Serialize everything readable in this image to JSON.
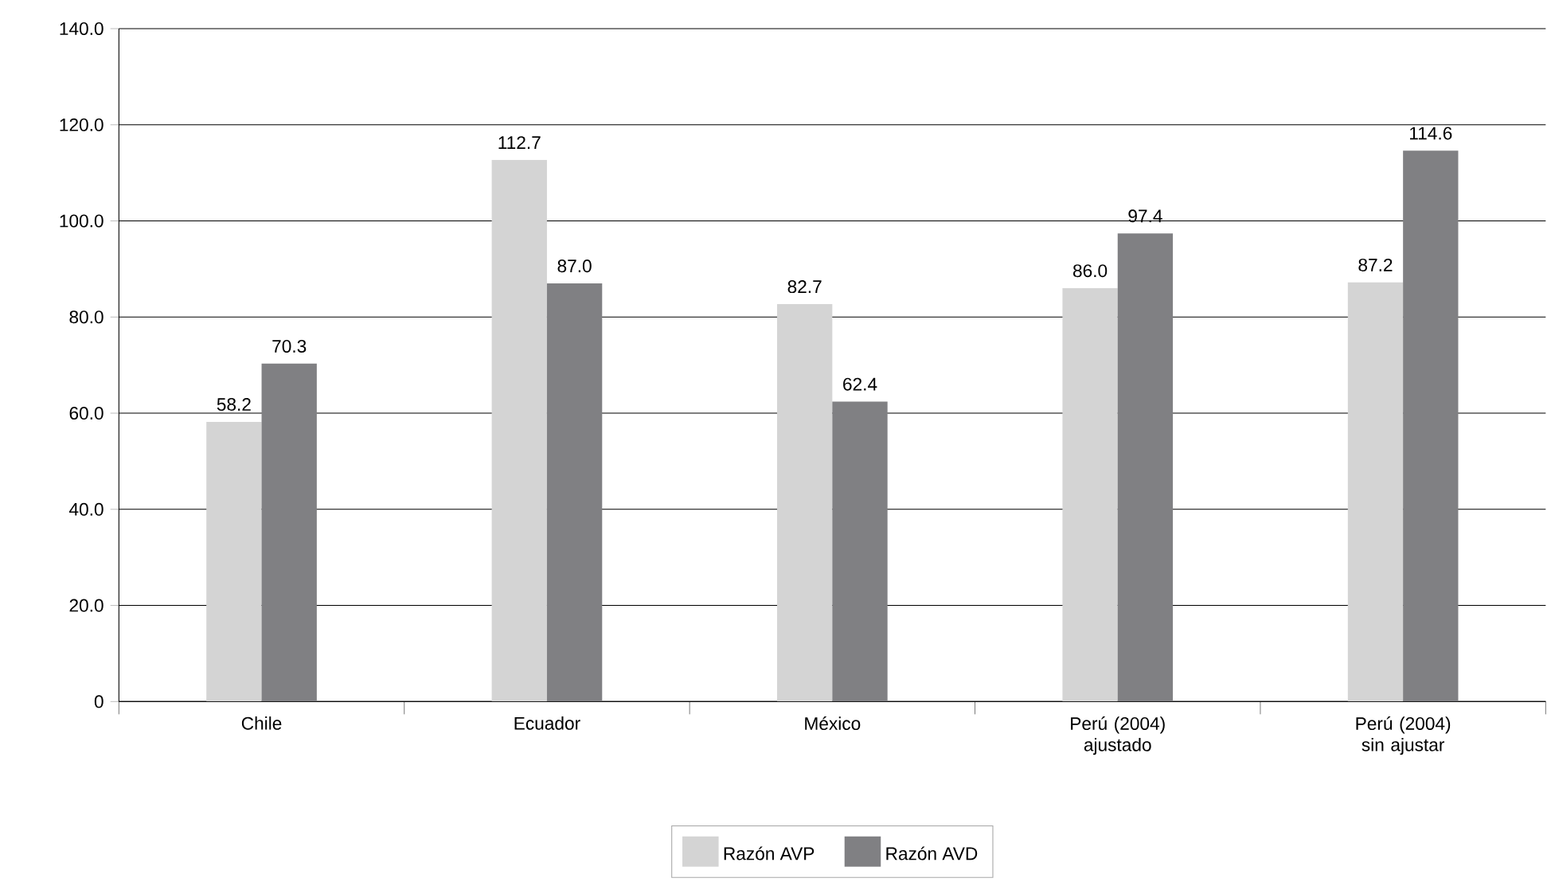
{
  "chart_data": {
    "type": "bar",
    "categories": [
      "Chile",
      "Ecuador",
      "México",
      "Perú (2004) ajustado",
      "Perú (2004) sin ajustar"
    ],
    "series": [
      {
        "name": "Razón AVP",
        "color": "#d4d4d4",
        "values": [
          58.2,
          112.7,
          82.7,
          86.0,
          87.2
        ],
        "value_labels": [
          "58.2",
          "112.7",
          "82.7",
          "86.0",
          "87.2"
        ]
      },
      {
        "name": "Razón AVD",
        "color": "#808083",
        "values": [
          70.3,
          87.0,
          62.4,
          97.4,
          114.6
        ],
        "value_labels": [
          "70.3",
          "87.0",
          "62.4",
          "97.4",
          "114.6"
        ]
      }
    ],
    "ylim": [
      0,
      140
    ],
    "yticks": [
      0,
      {
        "value": 20,
        "label": "20.0"
      },
      {
        "value": 40,
        "label": "40.0"
      },
      {
        "value": 60,
        "label": "60.0"
      },
      {
        "value": 80,
        "label": "80.0"
      },
      {
        "value": 100,
        "label": "100.0"
      },
      {
        "value": 120,
        "label": "120.0"
      },
      {
        "value": 140,
        "label": "140.0"
      }
    ],
    "grid": "y",
    "legend": "bottom"
  }
}
